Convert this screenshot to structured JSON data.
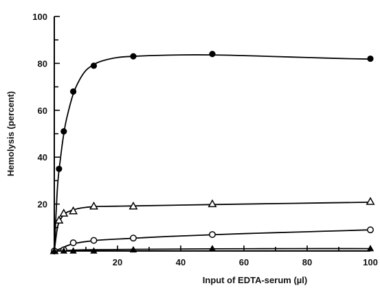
{
  "chart_data": {
    "type": "line",
    "xlabel": "Input of EDTA-serum (µl)",
    "ylabel": "Hemolysis (percent)",
    "xlim": [
      0,
      100
    ],
    "ylim": [
      0,
      100
    ],
    "xticks": [
      20,
      40,
      60,
      80,
      100
    ],
    "yticks": [
      20,
      40,
      60,
      80,
      100
    ],
    "grid": false,
    "series": [
      {
        "marker": "filled-circle",
        "x": [
          0,
          1.5,
          3,
          6,
          12.5,
          25,
          50,
          100
        ],
        "y": [
          0,
          35,
          51,
          68,
          79,
          83,
          84,
          82
        ],
        "curve_x": [
          0,
          1,
          2,
          3,
          4,
          6,
          8,
          10,
          12.5,
          15,
          20,
          25,
          30,
          40,
          50,
          60,
          70,
          80,
          90,
          100
        ],
        "curve_y": [
          0,
          27,
          40,
          50,
          57,
          67,
          73,
          77,
          79.5,
          81,
          82.5,
          83,
          83.3,
          83.6,
          83.6,
          83.3,
          82.9,
          82.5,
          82.1,
          81.8
        ]
      },
      {
        "marker": "open-triangle",
        "x": [
          0,
          1.5,
          3,
          6,
          12.5,
          25,
          50,
          100
        ],
        "y": [
          0,
          13,
          16,
          17,
          19,
          19,
          20,
          21
        ],
        "curve_x": [
          0,
          1,
          2,
          3,
          4,
          6,
          8,
          10,
          12.5,
          15,
          20,
          25,
          50,
          75,
          100
        ],
        "curve_y": [
          0,
          10,
          13.5,
          15.5,
          16.5,
          17.5,
          18.2,
          18.6,
          18.9,
          19,
          19.1,
          19.2,
          19.8,
          20.3,
          20.8
        ]
      },
      {
        "marker": "open-circle",
        "x": [
          0,
          3,
          6,
          12.5,
          25,
          50,
          100
        ],
        "y": [
          0,
          0.5,
          3.5,
          4.5,
          5.5,
          7,
          9
        ],
        "curve_x": [
          0,
          2,
          4,
          6,
          8,
          10,
          12.5,
          15,
          20,
          25,
          30,
          40,
          50,
          60,
          70,
          80,
          90,
          100
        ],
        "curve_y": [
          0,
          1,
          2.2,
          3.1,
          3.6,
          4,
          4.4,
          4.7,
          5.1,
          5.4,
          5.8,
          6.4,
          6.9,
          7.4,
          7.8,
          8.2,
          8.6,
          9
        ]
      },
      {
        "marker": "filled-triangle",
        "x": [
          0,
          3,
          6,
          12.5,
          25,
          50,
          100
        ],
        "y": [
          0,
          0,
          0,
          0,
          0.5,
          1,
          1
        ],
        "curve_x": [
          0,
          5,
          10,
          25,
          50,
          75,
          100
        ],
        "curve_y": [
          0,
          0.3,
          0.5,
          0.7,
          0.9,
          1,
          1
        ]
      }
    ]
  }
}
